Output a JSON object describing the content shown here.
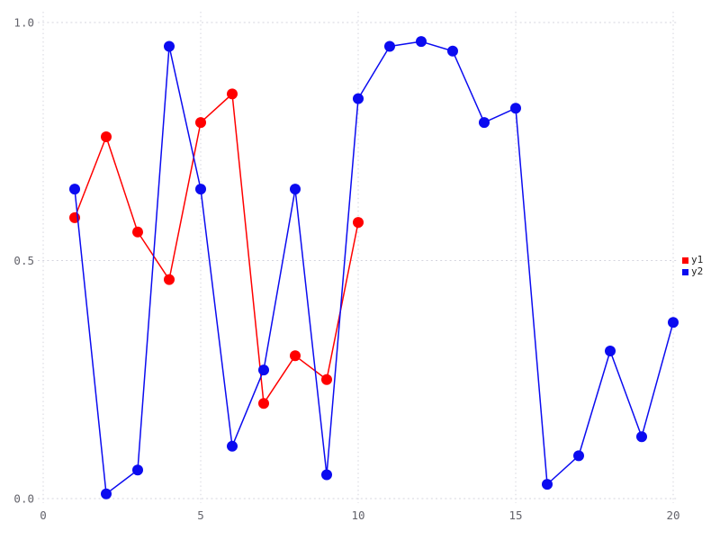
{
  "chart_data": {
    "type": "line",
    "title": "",
    "xlabel": "",
    "ylabel": "",
    "xlim": [
      0,
      20
    ],
    "ylim": [
      0,
      1
    ],
    "xticks": {
      "values": [
        0,
        5,
        10,
        15,
        20
      ],
      "labels": [
        "0",
        "5",
        "10",
        "15",
        "20"
      ]
    },
    "yticks": {
      "values": [
        0,
        0.5,
        1
      ],
      "labels": [
        "0.0",
        "0.5",
        "1.0"
      ]
    },
    "grid": "dotted",
    "legend_position": "right-center",
    "marker": "circle",
    "series": [
      {
        "name": "y1",
        "color": "#ff0000",
        "x": [
          1,
          2,
          3,
          4,
          5,
          6,
          7,
          8,
          9,
          10
        ],
        "values": [
          0.59,
          0.76,
          0.56,
          0.46,
          0.79,
          0.85,
          0.2,
          0.3,
          0.25,
          0.58
        ]
      },
      {
        "name": "y2",
        "color": "#0b0bf0",
        "x": [
          1,
          2,
          3,
          4,
          5,
          6,
          7,
          8,
          9,
          10,
          11,
          12,
          13,
          14,
          15,
          16,
          17,
          18,
          19,
          20
        ],
        "values": [
          0.65,
          0.01,
          0.06,
          0.95,
          0.65,
          0.11,
          0.27,
          0.65,
          0.05,
          0.84,
          0.95,
          0.96,
          0.94,
          0.79,
          0.82,
          0.03,
          0.09,
          0.31,
          0.13,
          0.37
        ]
      }
    ]
  },
  "legend": {
    "items": [
      {
        "label": "y1",
        "color": "#ff0000"
      },
      {
        "label": "y2",
        "color": "#0b0bf0"
      }
    ]
  },
  "style": {
    "background": "#ffffff",
    "grid_color": "#d4d4de",
    "tick_label_color": "#63636b"
  }
}
